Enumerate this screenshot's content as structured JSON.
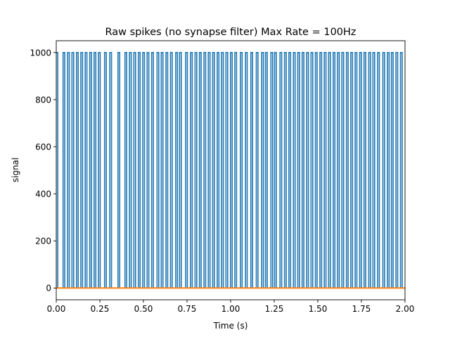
{
  "chart_data": {
    "type": "line",
    "title": "Raw spikes (no synapse filter) Max Rate = 100Hz",
    "xlabel": "Time (s)",
    "ylabel": "signal",
    "xlim": [
      0.0,
      2.0
    ],
    "ylim": [
      -50,
      1050
    ],
    "xticks": [
      0.0,
      0.25,
      0.5,
      0.75,
      1.0,
      1.25,
      1.5,
      1.75,
      2.0
    ],
    "xtick_labels": [
      "0.00",
      "0.25",
      "0.50",
      "0.75",
      "1.00",
      "1.25",
      "1.50",
      "1.75",
      "2.00"
    ],
    "yticks": [
      0,
      200,
      400,
      600,
      800,
      1000
    ],
    "ytick_labels": [
      "0",
      "200",
      "400",
      "600",
      "800",
      "1000"
    ],
    "grid": false,
    "series": [
      {
        "color": "#1f77b4",
        "kind": "spikes",
        "spike_height": 1000,
        "spike_times": [
          0.004,
          0.044,
          0.07,
          0.095,
          0.121,
          0.146,
          0.171,
          0.197,
          0.222,
          0.247,
          0.282,
          0.312,
          0.359,
          0.399,
          0.425,
          0.45,
          0.476,
          0.501,
          0.526,
          0.552,
          0.583,
          0.607,
          0.634,
          0.66,
          0.69,
          0.712,
          0.747,
          0.775,
          0.801,
          0.826,
          0.852,
          0.877,
          0.902,
          0.928,
          0.953,
          0.978,
          1.004,
          1.029,
          1.061,
          1.09,
          1.121,
          1.152,
          1.183,
          1.205,
          1.236,
          1.257,
          1.288,
          1.314,
          1.339,
          1.365,
          1.39,
          1.415,
          1.441,
          1.466,
          1.491,
          1.517,
          1.542,
          1.567,
          1.593,
          1.618,
          1.643,
          1.669,
          1.694,
          1.719,
          1.745,
          1.77,
          1.797,
          1.821,
          1.848,
          1.878,
          1.904,
          1.927,
          1.953,
          1.979
        ]
      },
      {
        "color": "#ff7f0e",
        "kind": "line",
        "x": [
          0.0,
          2.0
        ],
        "y": [
          0,
          0
        ]
      }
    ]
  }
}
